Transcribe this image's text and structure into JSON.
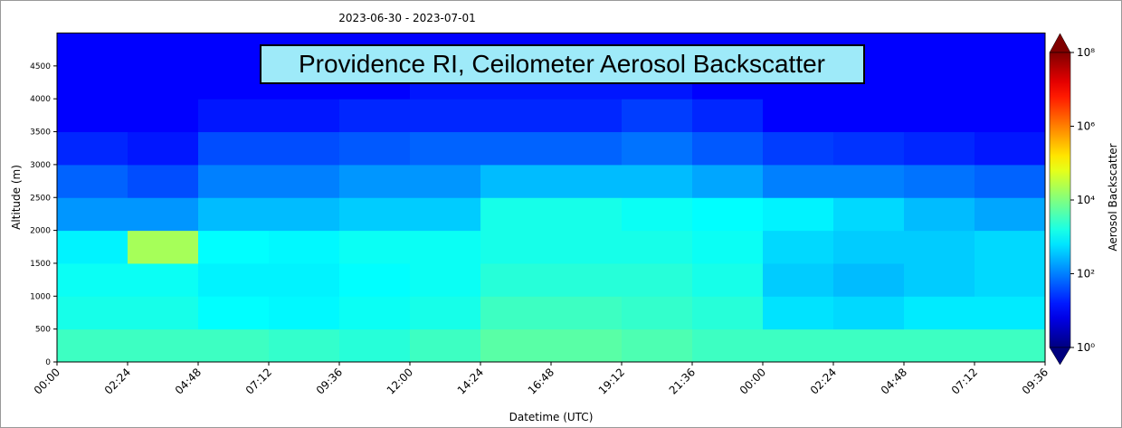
{
  "chart_data": {
    "type": "heatmap",
    "title": "Providence RI, Ceilometer Aerosol Backscatter",
    "subtitle": "2023-06-30 - 2023-07-01",
    "xlabel": "Datetime (UTC)",
    "ylabel": "Altitude (m)",
    "colorbar_label": "Aerosol Backscatter",
    "colormap": "jet",
    "clim": [
      1,
      100000000
    ],
    "clog": true,
    "xlim": [
      0,
      33.6
    ],
    "ylim": [
      0,
      5000
    ],
    "xticks": [
      {
        "value": 0,
        "label": "00:00"
      },
      {
        "value": 2.4,
        "label": "02:24"
      },
      {
        "value": 4.8,
        "label": "04:48"
      },
      {
        "value": 7.2,
        "label": "07:12"
      },
      {
        "value": 9.6,
        "label": "09:36"
      },
      {
        "value": 12,
        "label": "12:00"
      },
      {
        "value": 14.4,
        "label": "14:24"
      },
      {
        "value": 16.8,
        "label": "16:48"
      },
      {
        "value": 19.2,
        "label": "19:12"
      },
      {
        "value": 21.6,
        "label": "21:36"
      },
      {
        "value": 24,
        "label": "00:00"
      },
      {
        "value": 26.4,
        "label": "02:24"
      },
      {
        "value": 28.8,
        "label": "04:48"
      },
      {
        "value": 31.2,
        "label": "07:12"
      },
      {
        "value": 33.6,
        "label": "09:36"
      }
    ],
    "yticks": [
      0,
      500,
      1000,
      1500,
      2000,
      2500,
      3000,
      3500,
      4000,
      4500
    ],
    "cticks": [
      {
        "value": 1,
        "label": "10⁰"
      },
      {
        "value": 100,
        "label": "10²"
      },
      {
        "value": 10000,
        "label": "10⁴"
      },
      {
        "value": 1000000,
        "label": "10⁶"
      },
      {
        "value": 100000000,
        "label": "10⁸"
      }
    ],
    "xbins": [
      0,
      2.4,
      4.8,
      7.2,
      9.6,
      12,
      14.4,
      16.8,
      19.2,
      21.6,
      24,
      26.4,
      28.8,
      31.2,
      33.6
    ],
    "ybins": [
      0,
      500,
      1000,
      1500,
      2000,
      2500,
      3000,
      3500,
      4000,
      4500,
      5000
    ],
    "z": [
      [
        3000,
        1500,
        1200,
        800,
        150,
        60,
        20,
        10,
        10,
        10
      ],
      [
        3000,
        1500,
        1200,
        20000,
        150,
        40,
        15,
        10,
        10,
        10
      ],
      [
        3000,
        1000,
        800,
        1000,
        300,
        100,
        40,
        15,
        10,
        10
      ],
      [
        2500,
        900,
        800,
        900,
        300,
        100,
        40,
        15,
        10,
        10
      ],
      [
        2000,
        1200,
        1000,
        1200,
        400,
        150,
        50,
        20,
        10,
        10
      ],
      [
        3000,
        1500,
        1200,
        1200,
        400,
        150,
        60,
        20,
        15,
        10
      ],
      [
        5000,
        3000,
        2000,
        1500,
        1500,
        300,
        60,
        20,
        15,
        10
      ],
      [
        5000,
        3000,
        2000,
        1500,
        1500,
        300,
        60,
        20,
        15,
        10
      ],
      [
        4000,
        2500,
        2000,
        1500,
        1200,
        300,
        80,
        30,
        15,
        10
      ],
      [
        3000,
        2000,
        1500,
        1200,
        1000,
        200,
        50,
        20,
        10,
        10
      ],
      [
        3000,
        600,
        400,
        500,
        800,
        100,
        30,
        10,
        10,
        10
      ],
      [
        3000,
        500,
        300,
        400,
        500,
        100,
        25,
        10,
        10,
        10
      ],
      [
        3000,
        700,
        400,
        400,
        300,
        80,
        20,
        10,
        10,
        10
      ],
      [
        3000,
        700,
        500,
        500,
        200,
        60,
        15,
        10,
        10,
        10
      ]
    ]
  }
}
